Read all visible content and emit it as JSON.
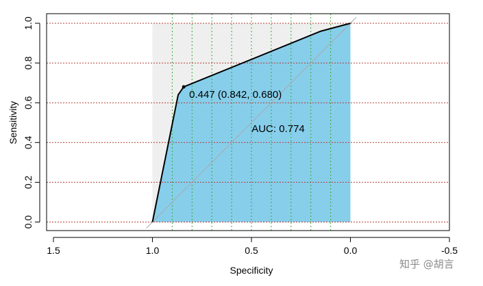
{
  "chart_data": {
    "type": "line",
    "title": "",
    "xlabel": "Specificity",
    "ylabel": "Sensitivity",
    "x_reversed": true,
    "xlim": [
      1.5,
      -0.5
    ],
    "ylim": [
      0.0,
      1.0
    ],
    "x_ticks": [
      1.5,
      1.0,
      0.5,
      0.0,
      -0.5
    ],
    "x_tick_labels": [
      "1.5",
      "1.0",
      "0.5",
      "0.0",
      "-0.5"
    ],
    "y_ticks": [
      0.0,
      0.2,
      0.4,
      0.6,
      0.8,
      1.0
    ],
    "y_tick_labels": [
      "0.0",
      "0.2",
      "0.4",
      "0.6",
      "0.8",
      "1.0"
    ],
    "series": [
      {
        "values": [
          {
            "x": 1.0,
            "y": 0.0
          },
          {
            "x": 0.87,
            "y": 0.64
          },
          {
            "x": 0.842,
            "y": 0.68
          },
          {
            "x": 0.15,
            "y": 0.96
          },
          {
            "x": 0.0,
            "y": 1.0
          }
        ]
      }
    ],
    "best_threshold": {
      "x": 0.842,
      "y": 0.68,
      "label": "0.447 (0.842, 0.680)"
    },
    "auc_label": "AUC: 0.774",
    "auc_label_pos": {
      "x": 0.5,
      "y": 0.47
    },
    "vertical_gridlines_x": [
      0.9,
      0.8,
      0.7,
      0.6,
      0.5,
      0.4,
      0.3,
      0.2,
      0.1
    ],
    "horizontal_gridlines_y": [
      0.0,
      0.2,
      0.4,
      0.6,
      0.8,
      1.0
    ],
    "colors": {
      "auc_fill": "#87CEEB",
      "upper_fill": "#EFEFEF",
      "curve": "#000000",
      "diagonal": "#AAAAAA",
      "h_grid": "#B03A2E",
      "v_grid": "#33AA33"
    }
  },
  "watermark": "知乎 @胡言"
}
